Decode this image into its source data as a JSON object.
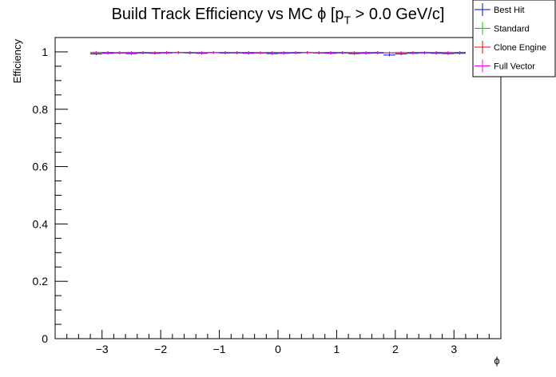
{
  "chart_data": {
    "type": "line",
    "title_main": "Build Track Efficiency vs MC ",
    "title_phi": "ϕ",
    "title_bracket": " [p",
    "title_sub": "T",
    "title_tail": " > 0.0 GeV/c]",
    "xlabel": "ϕ",
    "ylabel": "Efficiency",
    "xlim": [
      -3.8,
      3.8
    ],
    "ylim": [
      0,
      1.05
    ],
    "x_ticks": [
      "−3",
      "−2",
      "−1",
      "0",
      "1",
      "2",
      "3"
    ],
    "x_tick_values": [
      -3,
      -2,
      -1,
      0,
      1,
      2,
      3
    ],
    "y_ticks": [
      "0",
      "0.2",
      "0.4",
      "0.6",
      "0.8",
      "1"
    ],
    "y_tick_values": [
      0,
      0.2,
      0.4,
      0.6,
      0.8,
      1.0
    ],
    "legend_position": "top-right",
    "grid": false,
    "x": [
      -3.1,
      -2.9,
      -2.7,
      -2.5,
      -2.3,
      -2.1,
      -1.9,
      -1.7,
      -1.5,
      -1.3,
      -1.1,
      -0.9,
      -0.7,
      -0.5,
      -0.3,
      -0.1,
      0.1,
      0.3,
      0.5,
      0.7,
      0.9,
      1.1,
      1.3,
      1.5,
      1.7,
      1.9,
      2.1,
      2.3,
      2.5,
      2.7,
      2.9,
      3.1
    ],
    "series": [
      {
        "name": "Best Hit",
        "color": "#0000ff",
        "values": [
          0.993,
          0.995,
          0.996,
          0.994,
          0.996,
          0.995,
          0.996,
          0.997,
          0.996,
          0.995,
          0.997,
          0.996,
          0.996,
          0.995,
          0.996,
          0.994,
          0.995,
          0.996,
          0.997,
          0.996,
          0.995,
          0.996,
          0.994,
          0.995,
          0.996,
          0.989,
          0.993,
          0.995,
          0.996,
          0.995,
          0.994,
          0.995
        ]
      },
      {
        "name": "Standard",
        "color": "#00cc00",
        "values": [
          0.997,
          0.998,
          0.997,
          0.997,
          0.998,
          0.997,
          0.998,
          0.998,
          0.997,
          0.997,
          0.998,
          0.998,
          0.997,
          0.998,
          0.997,
          0.997,
          0.997,
          0.998,
          0.998,
          0.997,
          0.998,
          0.997,
          0.997,
          0.997,
          0.998,
          0.996,
          0.997,
          0.997,
          0.998,
          0.997,
          0.997,
          0.997
        ]
      },
      {
        "name": "Clone Engine",
        "color": "#ff0000",
        "values": [
          0.998,
          0.998,
          0.997,
          0.998,
          0.998,
          0.997,
          0.998,
          0.998,
          0.998,
          0.997,
          0.998,
          0.998,
          0.998,
          0.998,
          0.997,
          0.998,
          0.998,
          0.998,
          0.998,
          0.997,
          0.998,
          0.998,
          0.997,
          0.998,
          0.998,
          0.997,
          0.997,
          0.998,
          0.998,
          0.998,
          0.997,
          0.998
        ]
      },
      {
        "name": "Full Vector",
        "color": "#ff00ff",
        "values": [
          0.998,
          0.997,
          0.998,
          0.997,
          0.998,
          0.998,
          0.997,
          0.998,
          0.998,
          0.998,
          0.997,
          0.998,
          0.998,
          0.997,
          0.998,
          0.998,
          0.997,
          0.998,
          0.998,
          0.998,
          0.997,
          0.998,
          0.998,
          0.997,
          0.998,
          0.997,
          0.998,
          0.998,
          0.997,
          0.998,
          0.998,
          0.998
        ]
      }
    ]
  }
}
